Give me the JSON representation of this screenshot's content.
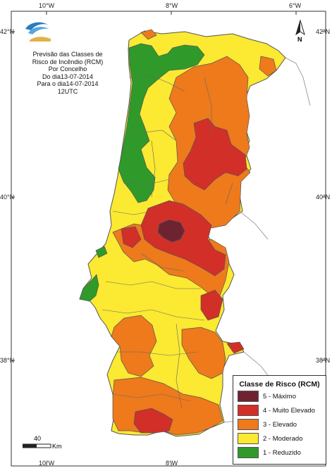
{
  "title_lines": [
    "Previsão das Classes de",
    "Risco de Incêndio (RCM)",
    "Por Concelho",
    "Do dia13-07-2014",
    "Para o dia14-07-2014",
    "12UTC"
  ],
  "ticks": {
    "top": [
      "10°W",
      "8°W",
      "6°W"
    ],
    "bottom": [
      "10°W",
      "8°W"
    ],
    "left": [
      "42°N",
      "40°N",
      "38°N"
    ],
    "right": [
      "42°N",
      "40°N",
      "38°N"
    ]
  },
  "legend": {
    "title": "Classe de Risco (RCM)",
    "items": [
      {
        "label": "5 - Máximo",
        "color": "#6e2331"
      },
      {
        "label": "4 - Muito Elevado",
        "color": "#d22f29"
      },
      {
        "label": "3 - Elevado",
        "color": "#ee7a1c"
      },
      {
        "label": "2 - Moderado",
        "color": "#fbe932"
      },
      {
        "label": "1 - Reduzido",
        "color": "#2f9a2a"
      }
    ]
  },
  "scale": {
    "value": "40",
    "unit": "Km"
  },
  "north_label": "N",
  "colors": {
    "sea": "#ffffff",
    "spain": "#ffffff",
    "border": "#555555"
  }
}
